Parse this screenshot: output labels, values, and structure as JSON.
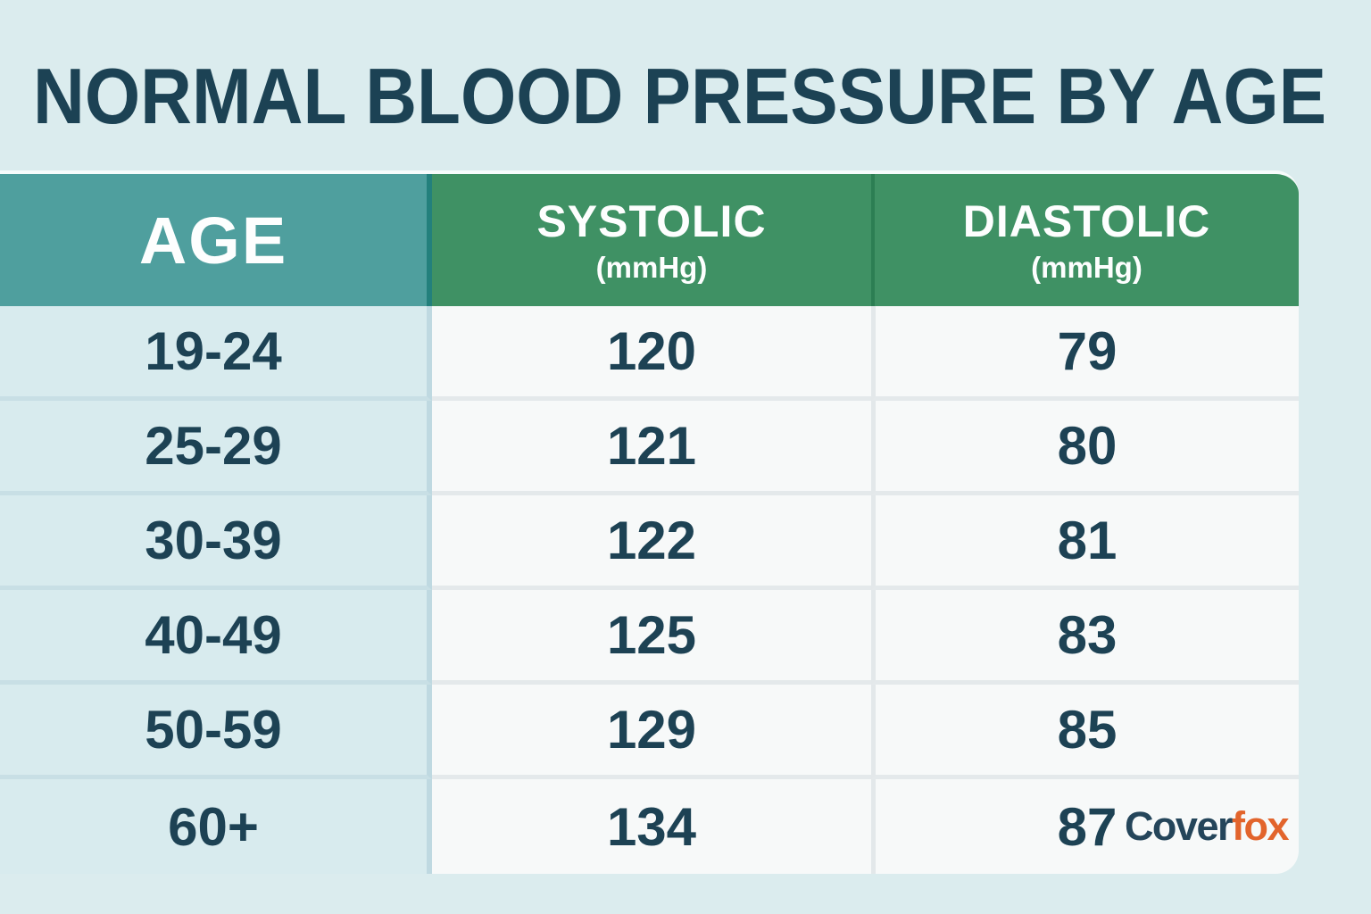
{
  "page": {
    "title": "NORMAL BLOOD PRESSURE BY AGE",
    "background_color": "#dbecee",
    "title_color": "#1c4254"
  },
  "table": {
    "header": {
      "age": {
        "label": "AGE"
      },
      "systolic": {
        "label": "SYSTOLIC",
        "sublabel": "(mmHg)"
      },
      "diastolic": {
        "label": "DIASTOLIC",
        "sublabel": "(mmHg)"
      },
      "age_header_color": "#4f9f9e",
      "value_header_color": "#3f9164",
      "header_text_color": "#fdfefe"
    },
    "cell_colors": {
      "age_cell_background": "#d8ebee",
      "value_cell_background": "#f7f9f9",
      "cell_text_color": "#1d4254"
    },
    "rows": [
      {
        "age": "19-24",
        "systolic": "120",
        "diastolic": "79"
      },
      {
        "age": "25-29",
        "systolic": "121",
        "diastolic": "80"
      },
      {
        "age": "30-39",
        "systolic": "122",
        "diastolic": "81"
      },
      {
        "age": "40-49",
        "systolic": "125",
        "diastolic": "83"
      },
      {
        "age": "50-59",
        "systolic": "129",
        "diastolic": "85"
      },
      {
        "age": "60+",
        "systolic": "134",
        "diastolic": "87"
      }
    ]
  },
  "logo": {
    "part1": "Cover",
    "part2": "fox",
    "part1_color": "#24455a",
    "part2_color": "#e2642c"
  },
  "chart_data": {
    "type": "table",
    "title": "NORMAL BLOOD PRESSURE BY AGE",
    "columns": [
      "AGE",
      "SYSTOLIC (mmHg)",
      "DIASTOLIC (mmHg)"
    ],
    "rows": [
      [
        "19-24",
        120,
        79
      ],
      [
        "25-29",
        121,
        80
      ],
      [
        "30-39",
        122,
        81
      ],
      [
        "40-49",
        125,
        83
      ],
      [
        "50-59",
        129,
        85
      ],
      [
        "60+",
        134,
        87
      ]
    ]
  }
}
